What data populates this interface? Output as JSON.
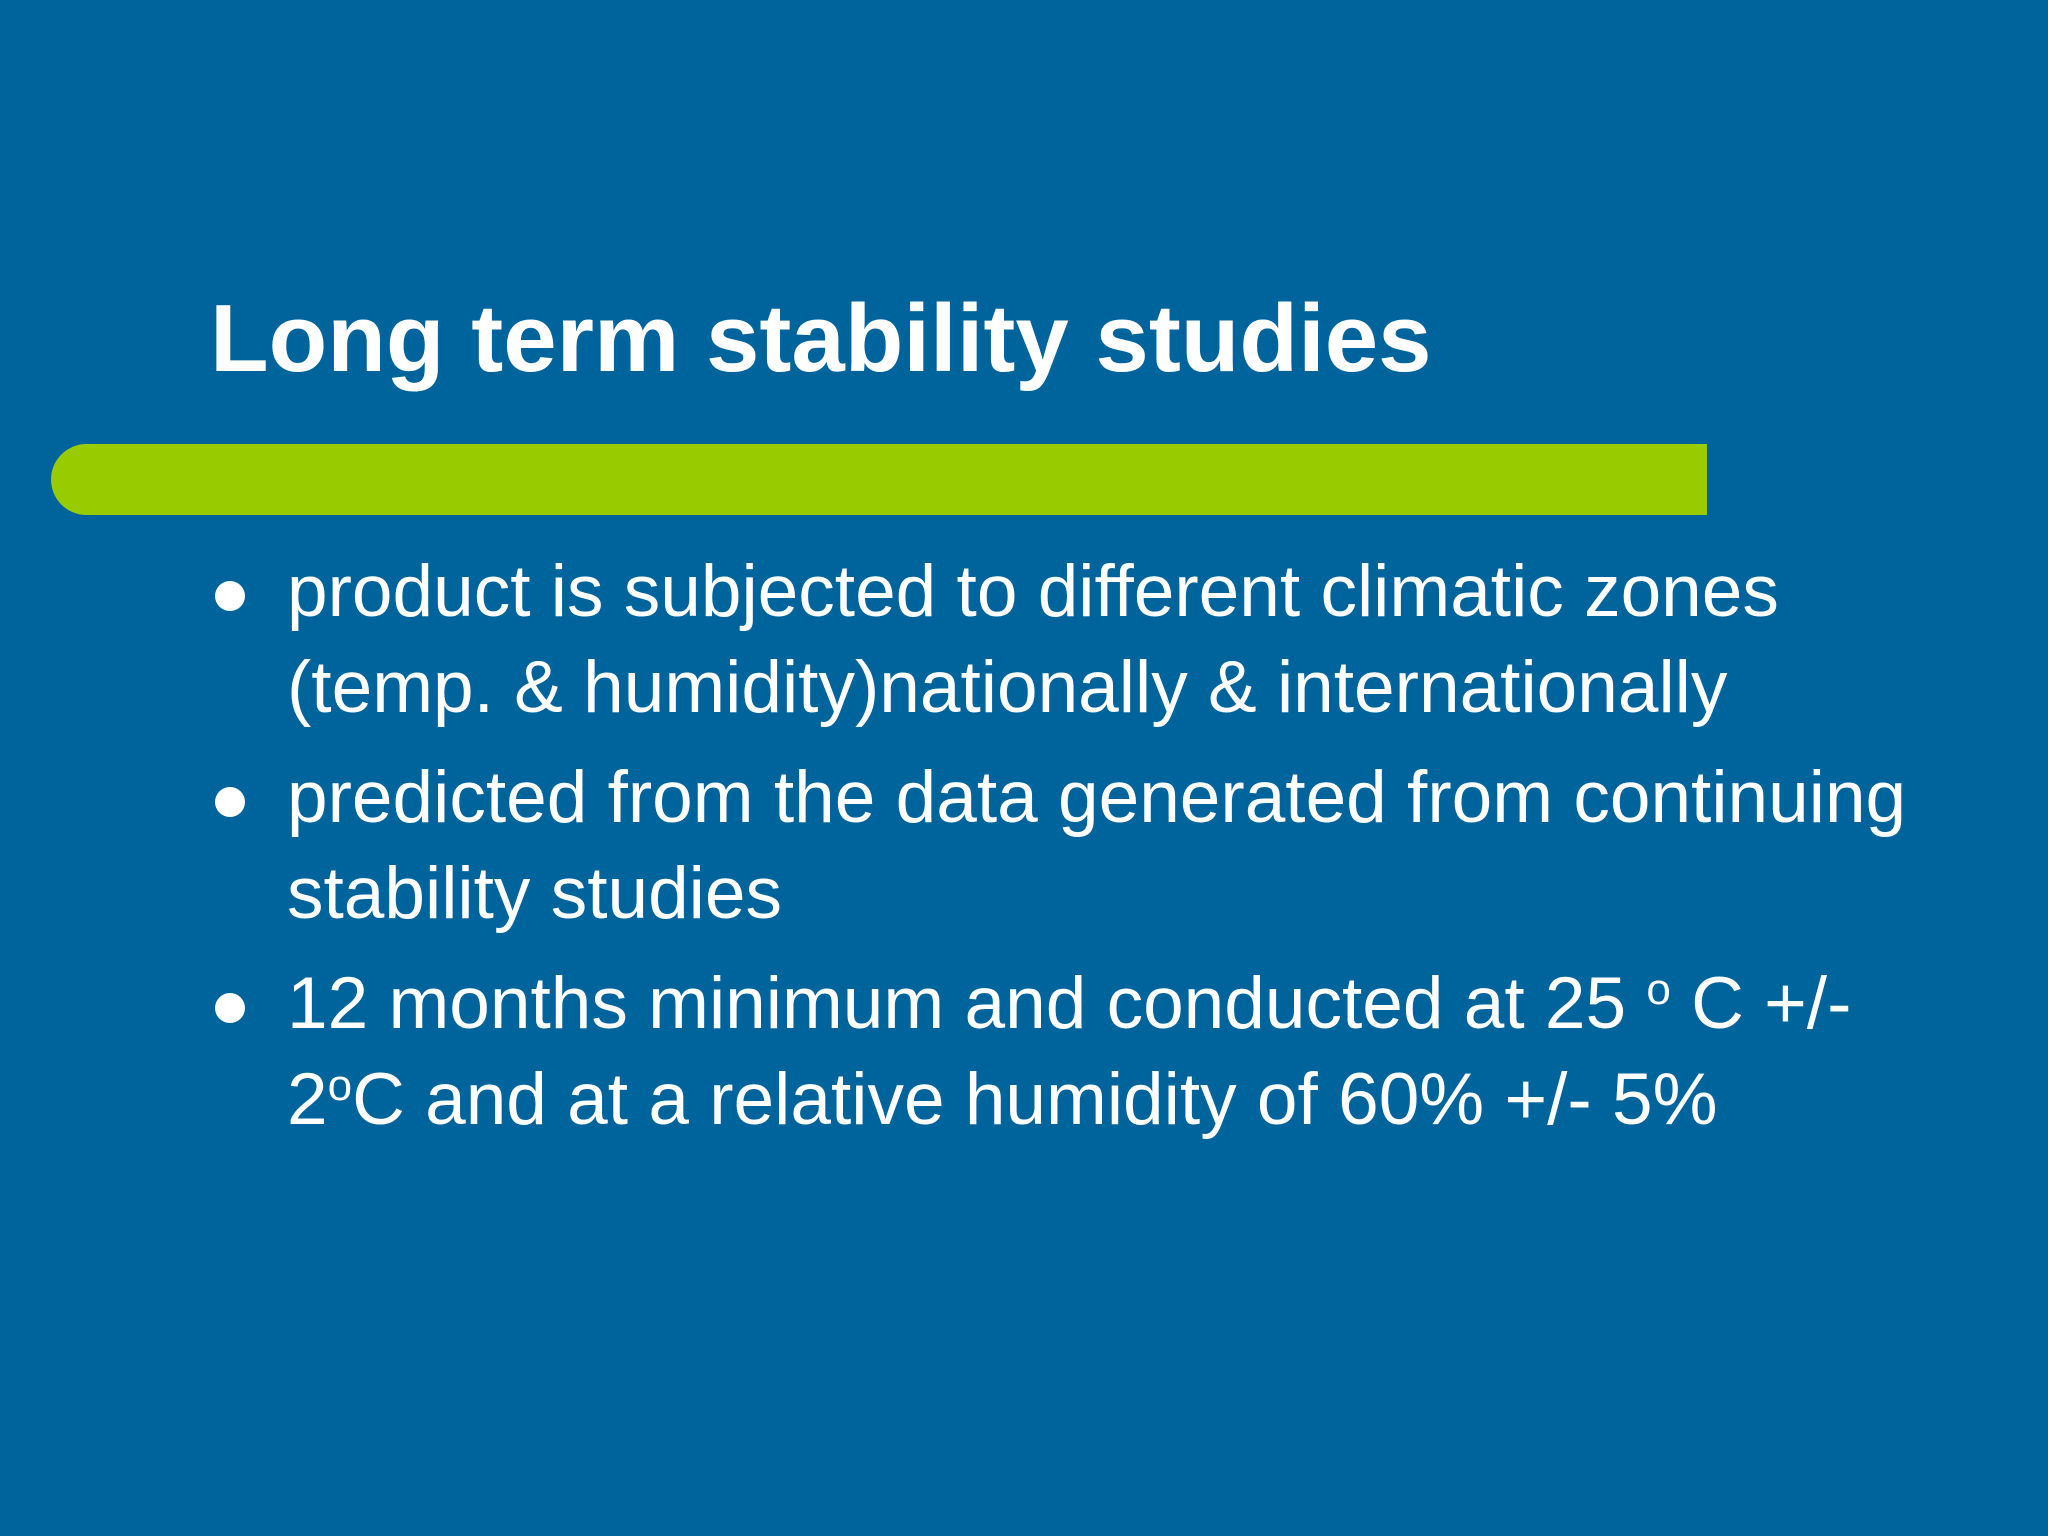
{
  "slide": {
    "title": "Long term stability studies",
    "bullets": [
      {
        "text": "product is subjected to different climatic zones (temp. & humidity)nationally & internationally"
      },
      {
        "text": "predicted from the data generated from continuing stability studies"
      },
      {
        "part1": "12 months minimum and conducted at 25 ",
        "sup1": "o",
        "part2": " C +/-  2",
        "sup2": "o",
        "part3": "C and at a relative humidity of 60% +/- 5%"
      }
    ]
  },
  "colors": {
    "background": "#00649c",
    "accent_bar": "#99cc00",
    "text": "#ffffff"
  }
}
